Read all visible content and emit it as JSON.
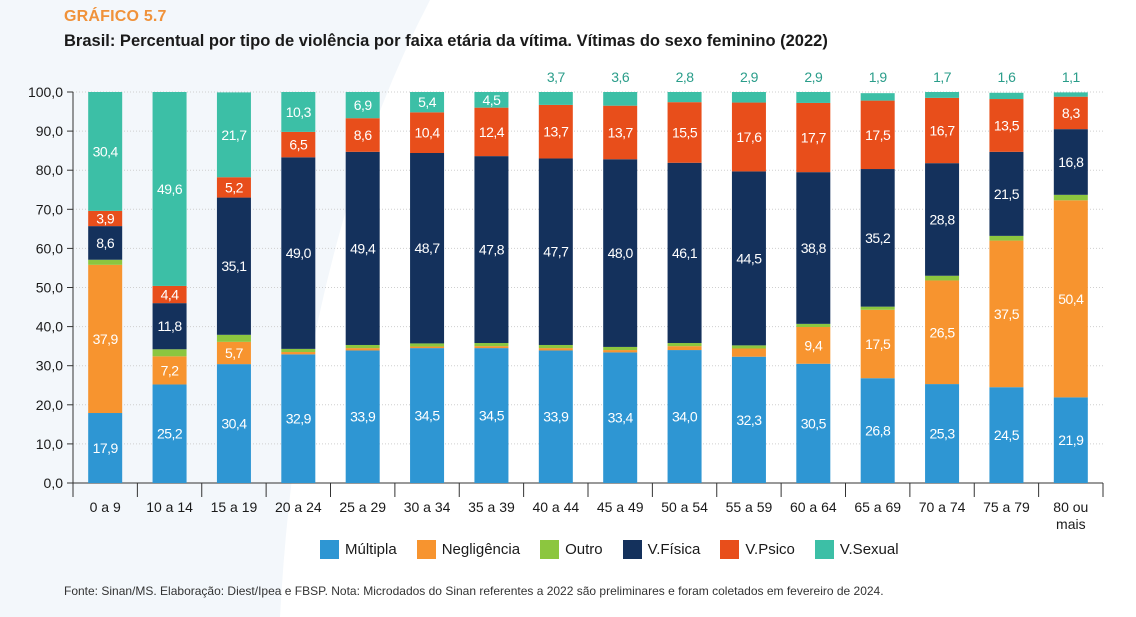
{
  "header": {
    "kicker": "GRÁFICO 5.7",
    "title": "Brasil: Percentual por tipo de violência por faixa etária da vítima. Vítimas do sexo feminino (2022)"
  },
  "source": "Fonte: Sinan/MS. Elaboração: Diest/Ipea e FBSP. Nota: Microdados do Sinan referentes a 2022 são preliminares e foram coletados em fevereiro de 2024.",
  "chart_data": {
    "type": "bar",
    "stacked": true,
    "categories": [
      "0 a 9",
      "10 a 14",
      "15 a 19",
      "20 a 24",
      "25 a 29",
      "30 a 34",
      "35 a 39",
      "40 a 44",
      "45 a 49",
      "50 a 54",
      "55 a 59",
      "60 a 64",
      "65 a 69",
      "70 a 74",
      "75 a 79",
      "80 ou mais"
    ],
    "y_ticks": [
      "0,0",
      "10,0",
      "20,0",
      "30,0",
      "40,0",
      "50,0",
      "60,0",
      "70,0",
      "80,0",
      "90,0",
      "100,0"
    ],
    "ylim": [
      0,
      100
    ],
    "grid": true,
    "legend_position": "bottom",
    "series": [
      {
        "name": "Múltipla",
        "color": "#2e96d3",
        "label_color": "#ffffff",
        "values": [
          17.9,
          25.2,
          30.4,
          32.9,
          33.9,
          34.5,
          34.5,
          33.9,
          33.4,
          34.0,
          32.3,
          30.5,
          26.8,
          25.3,
          24.5,
          21.9
        ],
        "labels": [
          "17,9",
          "25,2",
          "30,4",
          "32,9",
          "33,9",
          "34,5",
          "34,5",
          "33,9",
          "33,4",
          "34,0",
          "32,3",
          "30,5",
          "26,8",
          "25,3",
          "24,5",
          "21,9"
        ]
      },
      {
        "name": "Negligência",
        "color": "#f7942f",
        "label_color": "#ffffff",
        "values": [
          37.9,
          7.2,
          5.7,
          0.6,
          0.6,
          0.4,
          0.5,
          0.6,
          0.6,
          1.0,
          2.1,
          9.4,
          17.5,
          26.5,
          37.5,
          50.4
        ],
        "labels": [
          "37,9",
          "7,2",
          "5,7",
          "",
          "",
          "",
          "",
          "",
          "",
          "",
          "",
          "9,4",
          "17,5",
          "26,5",
          "37,5",
          "50,4"
        ]
      },
      {
        "name": "Outro",
        "color": "#8cc63f",
        "label_color": "#ffffff",
        "values": [
          1.3,
          1.8,
          1.8,
          0.8,
          0.8,
          0.8,
          0.8,
          0.8,
          0.8,
          0.8,
          0.8,
          0.8,
          0.8,
          1.2,
          1.2,
          1.4
        ],
        "labels": [
          "",
          "",
          "",
          "",
          "",
          "",
          "",
          "",
          "",
          "",
          "",
          "",
          "",
          "",
          "",
          ""
        ]
      },
      {
        "name": "V.Física",
        "color": "#14315c",
        "label_color": "#ffffff",
        "values": [
          8.6,
          11.8,
          35.1,
          49.0,
          49.4,
          48.7,
          47.8,
          47.7,
          48.0,
          46.1,
          44.5,
          38.8,
          35.2,
          28.8,
          21.5,
          16.8
        ],
        "labels": [
          "8,6",
          "11,8",
          "35,1",
          "49,0",
          "49,4",
          "48,7",
          "47,8",
          "47,7",
          "48,0",
          "46,1",
          "44,5",
          "38,8",
          "35,2",
          "28,8",
          "21,5",
          "16,8"
        ]
      },
      {
        "name": "V.Psico",
        "color": "#e84e1b",
        "label_color": "#ffffff",
        "values": [
          3.9,
          4.4,
          5.2,
          6.5,
          8.6,
          10.4,
          12.4,
          13.7,
          13.7,
          15.5,
          17.6,
          17.7,
          17.5,
          16.7,
          13.5,
          8.3
        ],
        "labels": [
          "3,9",
          "4,4",
          "5,2",
          "6,5",
          "8,6",
          "10,4",
          "12,4",
          "13,7",
          "13,7",
          "15,5",
          "17,6",
          "17,7",
          "17,5",
          "16,7",
          "13,5",
          "8,3"
        ]
      },
      {
        "name": "V.Sexual",
        "color": "#3cbfa6",
        "label_color": "#ffffff",
        "values": [
          30.4,
          49.6,
          21.7,
          10.3,
          6.9,
          5.4,
          4.5,
          3.7,
          3.6,
          2.8,
          2.9,
          2.9,
          1.9,
          1.7,
          1.6,
          1.1
        ],
        "labels": [
          "30,4",
          "49,6",
          "21,7",
          "10,3",
          "6,9",
          "5,4",
          "4,5",
          "3,7",
          "3,6",
          "2,8",
          "2,9",
          "2,9",
          "1,9",
          "1,7",
          "1,6",
          "1,1"
        ],
        "labels_above_from_index": 7,
        "above_label_color": "#2a9d8a"
      }
    ]
  },
  "legend": [
    {
      "label": "Múltipla",
      "color": "#2e96d3"
    },
    {
      "label": "Negligência",
      "color": "#f7942f"
    },
    {
      "label": "Outro",
      "color": "#8cc63f"
    },
    {
      "label": "V.Física",
      "color": "#14315c"
    },
    {
      "label": "V.Psico",
      "color": "#e84e1b"
    },
    {
      "label": "V.Sexual",
      "color": "#3cbfa6"
    }
  ]
}
